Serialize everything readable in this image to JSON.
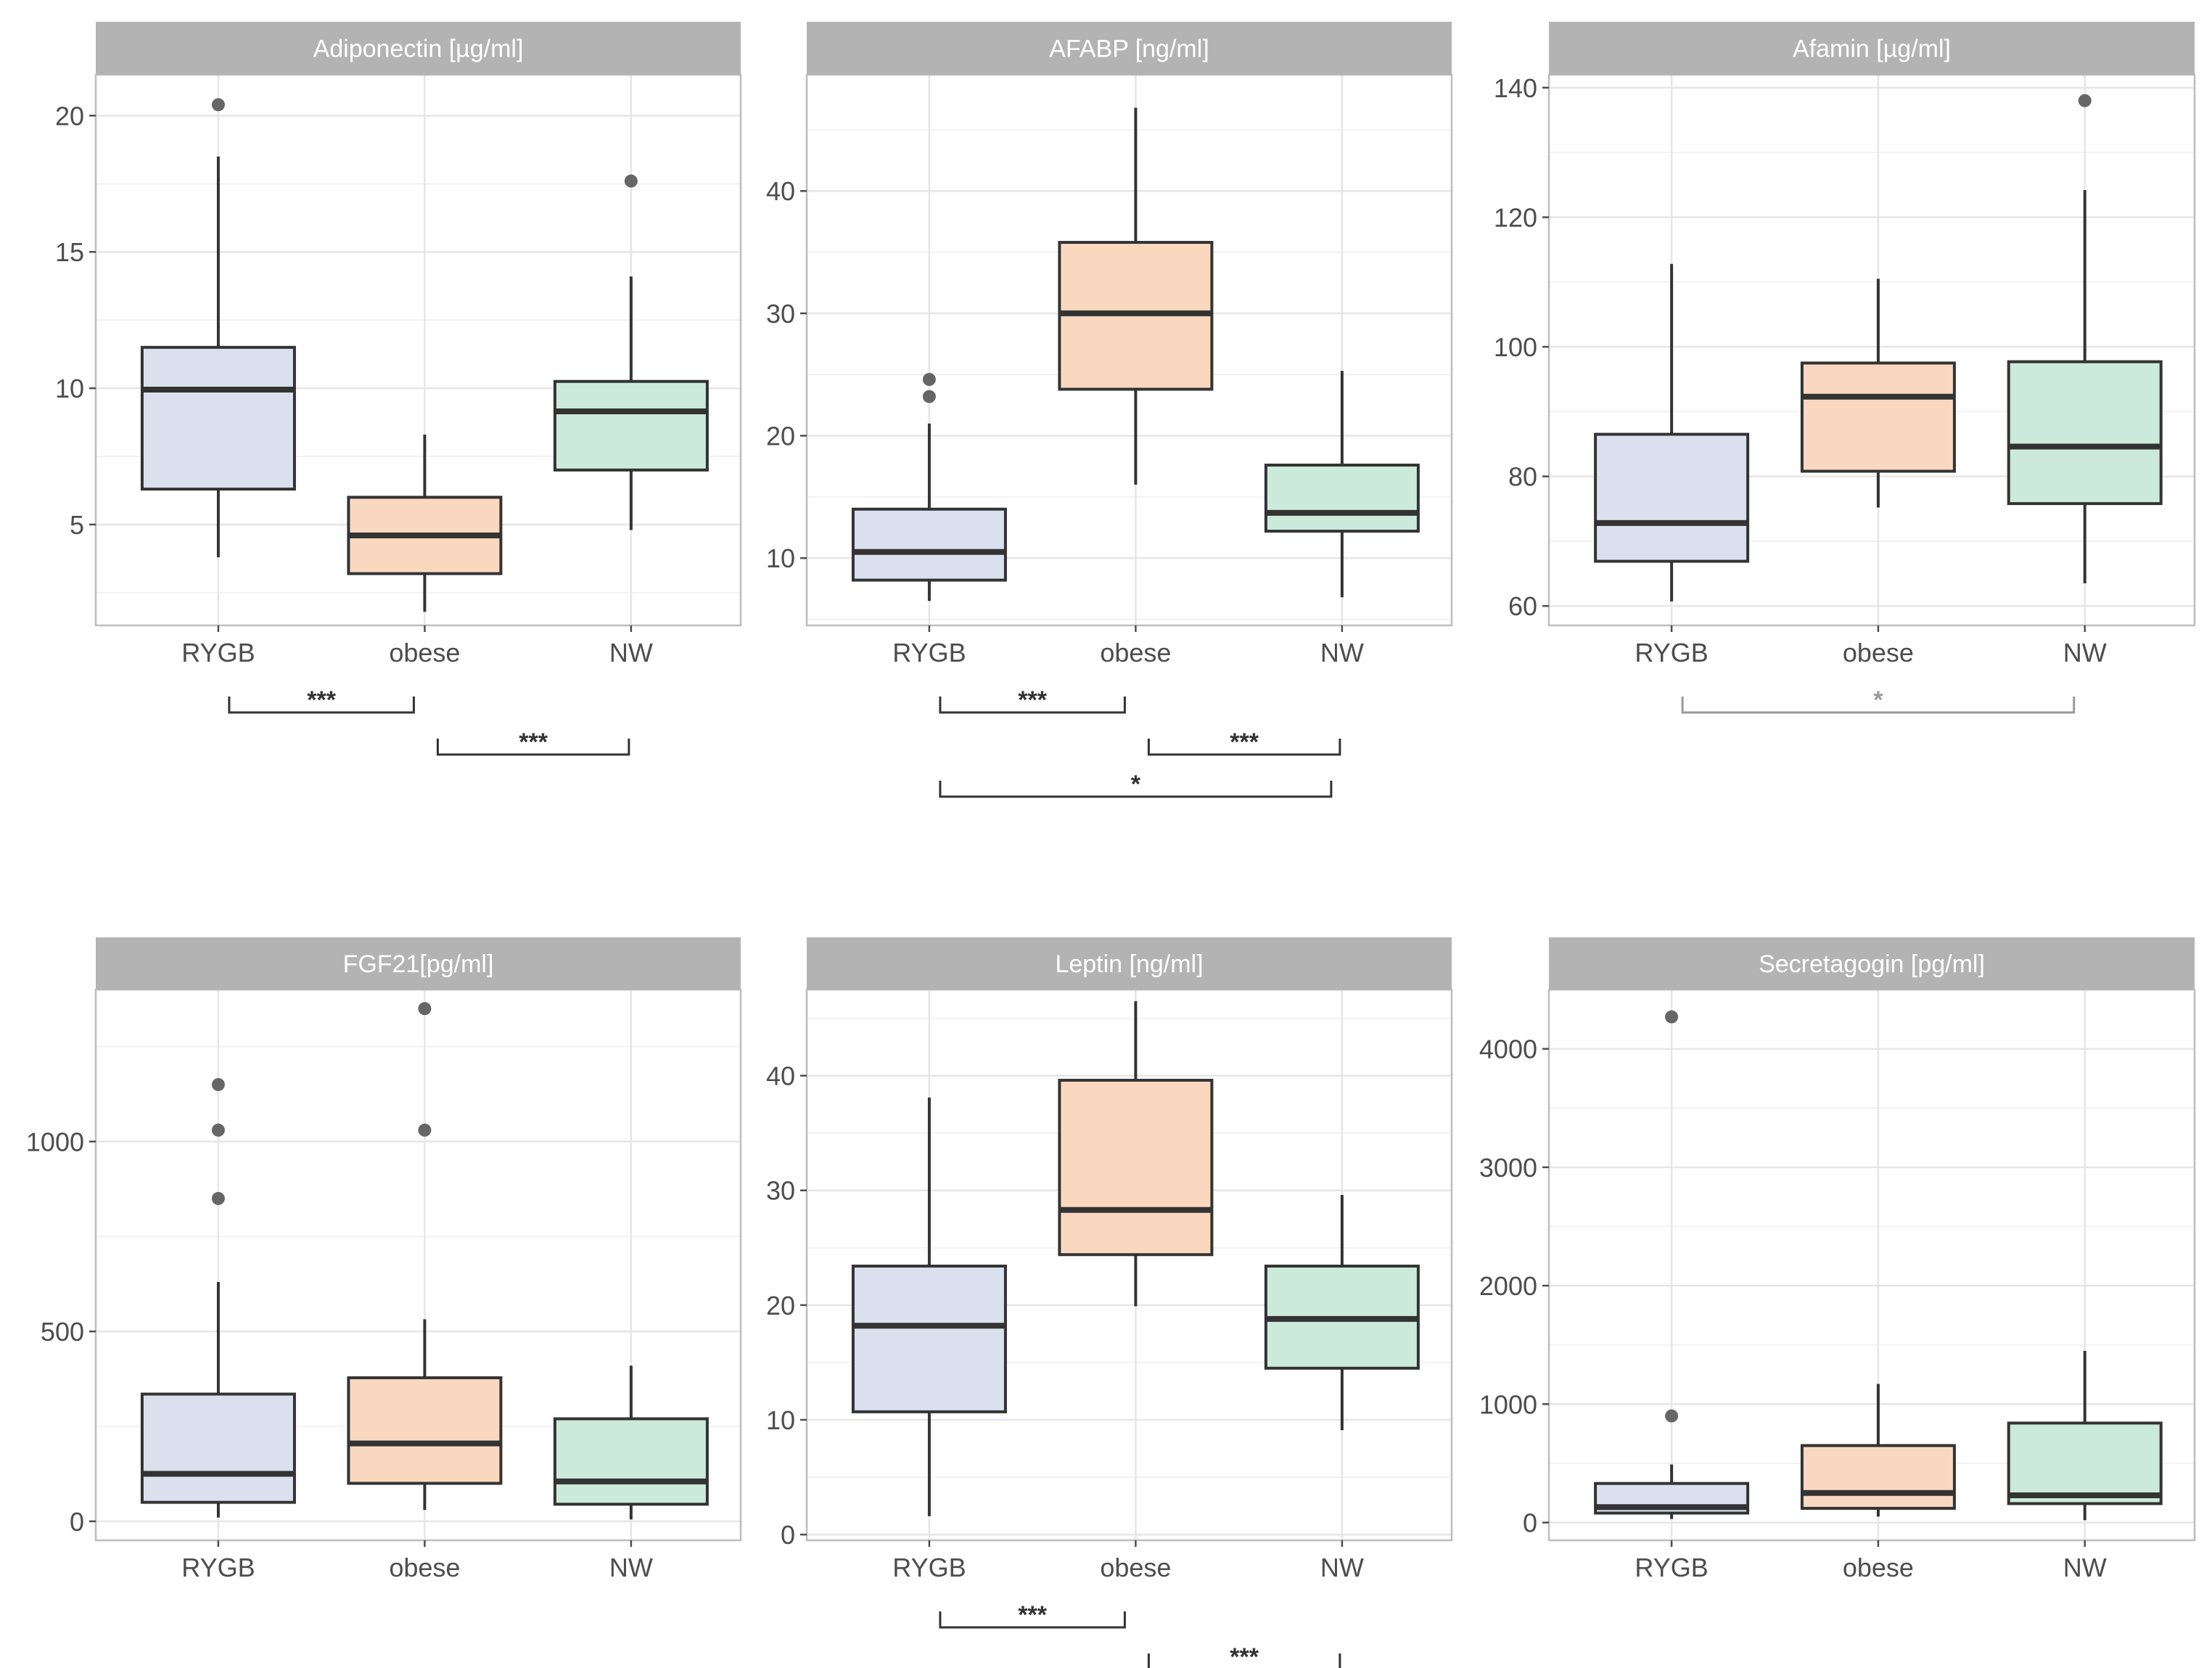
{
  "colors": {
    "RYGB": "#dae0ee",
    "obese": "#fad8c0",
    "NW": "#cbeadb",
    "strip": "#b3b3b3",
    "strip_text": "#ffffff",
    "grid_major": "#e6e6e6",
    "grid_minor": "#f2f2f2",
    "panel_border": "#bdbdbd",
    "box_stroke": "#333333",
    "outlier": "#666666",
    "tick_text": "#4d4d4d",
    "bracket": "#333333",
    "bracket_faint": "#999999"
  },
  "chart_data": [
    {
      "type": "box",
      "title": "Adiponectin [µg/ml]",
      "categories": [
        "RYGB",
        "obese",
        "NW"
      ],
      "ylim": [
        1.3,
        21.5
      ],
      "yticks": [
        5,
        10,
        15,
        20
      ],
      "ytick_labels": [
        "5",
        "10",
        "15",
        "20"
      ],
      "boxes": [
        {
          "group": "RYGB",
          "min": 3.8,
          "q1": 6.3,
          "median": 9.95,
          "q3": 11.5,
          "max": 18.5,
          "outliers": [
            20.4
          ]
        },
        {
          "group": "obese",
          "min": 1.8,
          "q1": 3.2,
          "median": 4.6,
          "q3": 6.0,
          "max": 8.3,
          "outliers": []
        },
        {
          "group": "NW",
          "min": 4.8,
          "q1": 7.0,
          "median": 9.15,
          "q3": 10.25,
          "max": 14.1,
          "outliers": [
            17.6
          ]
        }
      ],
      "significance": [
        {
          "from": "RYGB",
          "to": "obese",
          "label": "***",
          "faint": false
        },
        {
          "from": "obese",
          "to": "NW",
          "label": "***",
          "faint": false
        }
      ]
    },
    {
      "type": "box",
      "title": "AFABP [ng/ml]",
      "categories": [
        "RYGB",
        "obese",
        "NW"
      ],
      "ylim": [
        4.5,
        49.5
      ],
      "yticks": [
        10,
        20,
        30,
        40
      ],
      "ytick_labels": [
        "10",
        "20",
        "30",
        "40"
      ],
      "boxes": [
        {
          "group": "RYGB",
          "min": 6.5,
          "q1": 8.2,
          "median": 10.5,
          "q3": 14.0,
          "max": 21.0,
          "outliers": [
            23.2,
            24.6
          ]
        },
        {
          "group": "obese",
          "min": 16.0,
          "q1": 23.8,
          "median": 30.0,
          "q3": 35.8,
          "max": 46.8,
          "outliers": []
        },
        {
          "group": "NW",
          "min": 6.8,
          "q1": 12.2,
          "median": 13.7,
          "q3": 17.6,
          "max": 25.3,
          "outliers": []
        }
      ],
      "significance": [
        {
          "from": "RYGB",
          "to": "obese",
          "label": "***",
          "faint": false
        },
        {
          "from": "obese",
          "to": "NW",
          "label": "***",
          "faint": false
        },
        {
          "from": "RYGB",
          "to": "NW",
          "label": "*",
          "faint": false
        }
      ]
    },
    {
      "type": "box",
      "title": "Afamin [µg/ml]",
      "categories": [
        "RYGB",
        "obese",
        "NW"
      ],
      "ylim": [
        57,
        142
      ],
      "yticks": [
        60,
        80,
        100,
        120,
        140
      ],
      "ytick_labels": [
        "60",
        "80",
        "100",
        "120",
        "140"
      ],
      "boxes": [
        {
          "group": "RYGB",
          "min": 60.7,
          "q1": 66.9,
          "median": 72.8,
          "q3": 86.5,
          "max": 112.8,
          "outliers": []
        },
        {
          "group": "obese",
          "min": 75.2,
          "q1": 80.8,
          "median": 92.3,
          "q3": 97.5,
          "max": 110.5,
          "outliers": []
        },
        {
          "group": "NW",
          "min": 63.5,
          "q1": 75.8,
          "median": 84.6,
          "q3": 97.7,
          "max": 124.2,
          "outliers": [
            138.0
          ]
        }
      ],
      "significance": [
        {
          "from": "RYGB",
          "to": "NW",
          "label": "*",
          "faint": true
        }
      ]
    },
    {
      "type": "box",
      "title": "FGF21[pg/ml]",
      "categories": [
        "RYGB",
        "obese",
        "NW"
      ],
      "ylim": [
        -50,
        1400
      ],
      "yticks": [
        0,
        500,
        1000
      ],
      "ytick_labels": [
        "0",
        "500",
        "1000"
      ],
      "boxes": [
        {
          "group": "RYGB",
          "min": 10,
          "q1": 50,
          "median": 125,
          "q3": 335,
          "max": 630,
          "outliers": [
            850,
            1030,
            1150
          ]
        },
        {
          "group": "obese",
          "min": 30,
          "q1": 100,
          "median": 205,
          "q3": 378,
          "max": 532,
          "outliers": [
            1030,
            1350
          ]
        },
        {
          "group": "NW",
          "min": 5,
          "q1": 45,
          "median": 105,
          "q3": 270,
          "max": 410,
          "outliers": []
        }
      ],
      "significance": []
    },
    {
      "type": "box",
      "title": "Leptin [ng/ml]",
      "categories": [
        "RYGB",
        "obese",
        "NW"
      ],
      "ylim": [
        -0.5,
        47.5
      ],
      "yticks": [
        0,
        10,
        20,
        30,
        40
      ],
      "ytick_labels": [
        "0",
        "10",
        "20",
        "30",
        "40"
      ],
      "boxes": [
        {
          "group": "RYGB",
          "min": 1.6,
          "q1": 10.7,
          "median": 18.2,
          "q3": 23.4,
          "max": 38.1,
          "outliers": []
        },
        {
          "group": "obese",
          "min": 19.9,
          "q1": 24.4,
          "median": 28.3,
          "q3": 39.6,
          "max": 46.5,
          "outliers": []
        },
        {
          "group": "NW",
          "min": 9.1,
          "q1": 14.5,
          "median": 18.8,
          "q3": 23.4,
          "max": 29.6,
          "outliers": []
        }
      ],
      "significance": [
        {
          "from": "RYGB",
          "to": "obese",
          "label": "***",
          "faint": false
        },
        {
          "from": "obese",
          "to": "NW",
          "label": "***",
          "faint": false
        }
      ]
    },
    {
      "type": "box",
      "title": "Secretagogin [pg/ml]",
      "categories": [
        "RYGB",
        "obese",
        "NW"
      ],
      "ylim": [
        -150,
        4500
      ],
      "yticks": [
        0,
        1000,
        2000,
        3000,
        4000
      ],
      "ytick_labels": [
        "0",
        "1000",
        "2000",
        "3000",
        "4000"
      ],
      "boxes": [
        {
          "group": "RYGB",
          "min": 30,
          "q1": 80,
          "median": 130,
          "q3": 330,
          "max": 490,
          "outliers": [
            900,
            4270
          ]
        },
        {
          "group": "obese",
          "min": 50,
          "q1": 120,
          "median": 250,
          "q3": 650,
          "max": 1170,
          "outliers": []
        },
        {
          "group": "NW",
          "min": 20,
          "q1": 160,
          "median": 230,
          "q3": 840,
          "max": 1450,
          "outliers": []
        }
      ],
      "significance": []
    }
  ]
}
